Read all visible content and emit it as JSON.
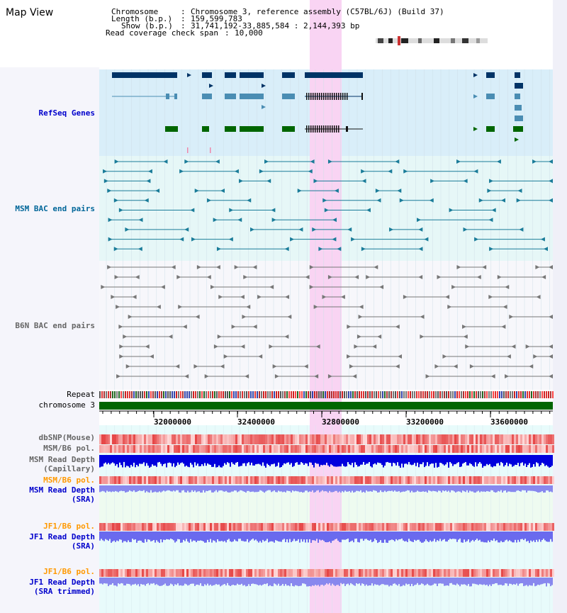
{
  "page": {
    "title": "Map View"
  },
  "header": {
    "chromosome_label": "Chromosome",
    "chromosome_value": "Chromosome 3, reference assembly (C57BL/6J) (Build 37)",
    "length_label": "Length (b.p.)",
    "length_value": "159,599,783",
    "show_label": "Show (b.p.)",
    "show_value": "31,741,192-33,885,584 : 2,144,393 bp",
    "coverage_label": "Read coverage check span",
    "coverage_value": "10,000"
  },
  "tracks": {
    "refseq": {
      "label": "RefSeq Genes",
      "color": "#0000cc"
    },
    "msm_bac": {
      "label": "MSM BAC end pairs",
      "color": "#006699"
    },
    "b6n_bac": {
      "label": "B6N BAC end pairs",
      "color": "#666666"
    },
    "repeat": {
      "label": "Repeat"
    },
    "chromosome": {
      "label": "chromosome 3",
      "color": "#006600"
    },
    "dbsnp": {
      "label": "dbSNP(Mouse)"
    },
    "msm_b6_pol_1": {
      "label": "MSM/B6 pol."
    },
    "msm_depth_cap_1": {
      "label": "MSM Read Depth"
    },
    "msm_depth_cap_2": {
      "label": "(Capillary)"
    },
    "msm_b6_pol_2": {
      "label": "MSM/B6 pol.",
      "color": "#ff9900"
    },
    "msm_depth_sra_1": {
      "label": "MSM Read Depth",
      "color": "#0000cc"
    },
    "msm_depth_sra_2": {
      "label": "(SRA)",
      "color": "#0000cc"
    },
    "jf1_b6_pol_1": {
      "label": "JF1/B6 pol.",
      "color": "#ff9900"
    },
    "jf1_depth_sra_1": {
      "label": "JF1 Read Depth",
      "color": "#0000cc"
    },
    "jf1_depth_sra_2": {
      "label": "(SRA)",
      "color": "#0000cc"
    },
    "jf1_b6_pol_2": {
      "label": "JF1/B6 pol.",
      "color": "#ff9900"
    },
    "jf1_depth_trim_1": {
      "label": "JF1 Read Depth",
      "color": "#0000cc"
    },
    "jf1_depth_trim_2": {
      "label": "(SRA trimmed)",
      "color": "#0000cc"
    }
  },
  "axis": {
    "ticks": [
      "32000000",
      "32400000",
      "32800000",
      "33200000",
      "33600000"
    ]
  },
  "colors": {
    "highlight": "#f9d4f3",
    "refseq_bg": "#d9eef9",
    "dark_gene": "#003366",
    "mid_gene": "#4a8db3",
    "green_gene": "#006600",
    "msm_bg": "#e6f7f7",
    "depth_blue": "#0000dd",
    "depth_light": "#8888ee"
  }
}
